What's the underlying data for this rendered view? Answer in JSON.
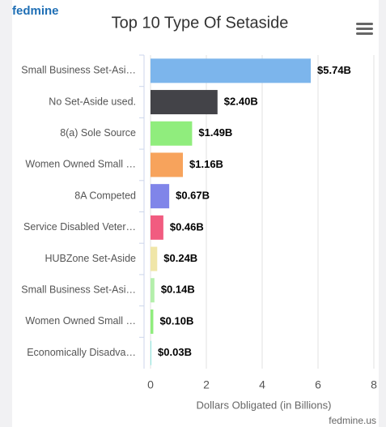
{
  "brand": "fedmine",
  "chart_data": {
    "type": "bar",
    "orientation": "horizontal",
    "title": "Top 10 Type Of Setaside",
    "categories": [
      "Small Business Set-Asi…",
      "No Set-Aside used.",
      "8(a) Sole Source",
      "Women Owned Small …",
      "8A Competed",
      "Service Disabled Veter…",
      "HUBZone Set-Aside",
      "Small Business Set-Asi…",
      "Women Owned Small …",
      "Economically Disadva…"
    ],
    "values": [
      5.74,
      2.4,
      1.49,
      1.16,
      0.67,
      0.46,
      0.24,
      0.14,
      0.1,
      0.03
    ],
    "value_labels": [
      "$5.74B",
      "$2.40B",
      "$1.49B",
      "$1.16B",
      "$0.67B",
      "$0.46B",
      "$0.24B",
      "$0.14B",
      "$0.10B",
      "$0.03B"
    ],
    "colors": [
      "#7cb5ec",
      "#434348",
      "#90ed7d",
      "#f7a35c",
      "#8085e9",
      "#f15c80",
      "#f0e6a8",
      "#b4efab",
      "#90ed7d",
      "#91e8e1"
    ],
    "xlim": [
      0,
      8
    ],
    "xticks": [
      0,
      2,
      4,
      6,
      8
    ],
    "grid": true,
    "xlabel": "Dollars Obligated (in Billions)",
    "credit": "fedmine.us"
  }
}
